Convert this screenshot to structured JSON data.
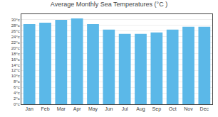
{
  "chart_data": {
    "type": "bar",
    "title": "Average Monthly Sea Temperatures (°C )",
    "categories": [
      "Jan",
      "Feb",
      "Mar",
      "Apr",
      "May",
      "Jun",
      "Jul",
      "Aug",
      "Sep",
      "Oct",
      "Nov",
      "Dec"
    ],
    "values": [
      28.5,
      29.0,
      30.0,
      30.5,
      28.5,
      26.5,
      25.0,
      25.0,
      25.5,
      26.5,
      27.5,
      27.5
    ],
    "color": "#5BB8E8",
    "ylim": [
      0,
      32
    ],
    "yticks": [
      {
        "value": 0,
        "label": "0°c"
      },
      {
        "value": 2,
        "label": "2°c"
      },
      {
        "value": 4,
        "label": "4°c"
      },
      {
        "value": 6,
        "label": "6°c"
      },
      {
        "value": 8,
        "label": "8°c"
      },
      {
        "value": 10,
        "label": "10°c"
      },
      {
        "value": 12,
        "label": "12°c"
      },
      {
        "value": 14,
        "label": "14°c"
      },
      {
        "value": 16,
        "label": "16°c"
      },
      {
        "value": 18,
        "label": "18°c"
      },
      {
        "value": 20,
        "label": "20°c"
      },
      {
        "value": 22,
        "label": "22°c"
      },
      {
        "value": 24,
        "label": "24°c"
      },
      {
        "value": 26,
        "label": "26°c"
      },
      {
        "value": 28,
        "label": "28°c"
      },
      {
        "value": 30,
        "label": "30°c"
      }
    ],
    "grid": true
  }
}
